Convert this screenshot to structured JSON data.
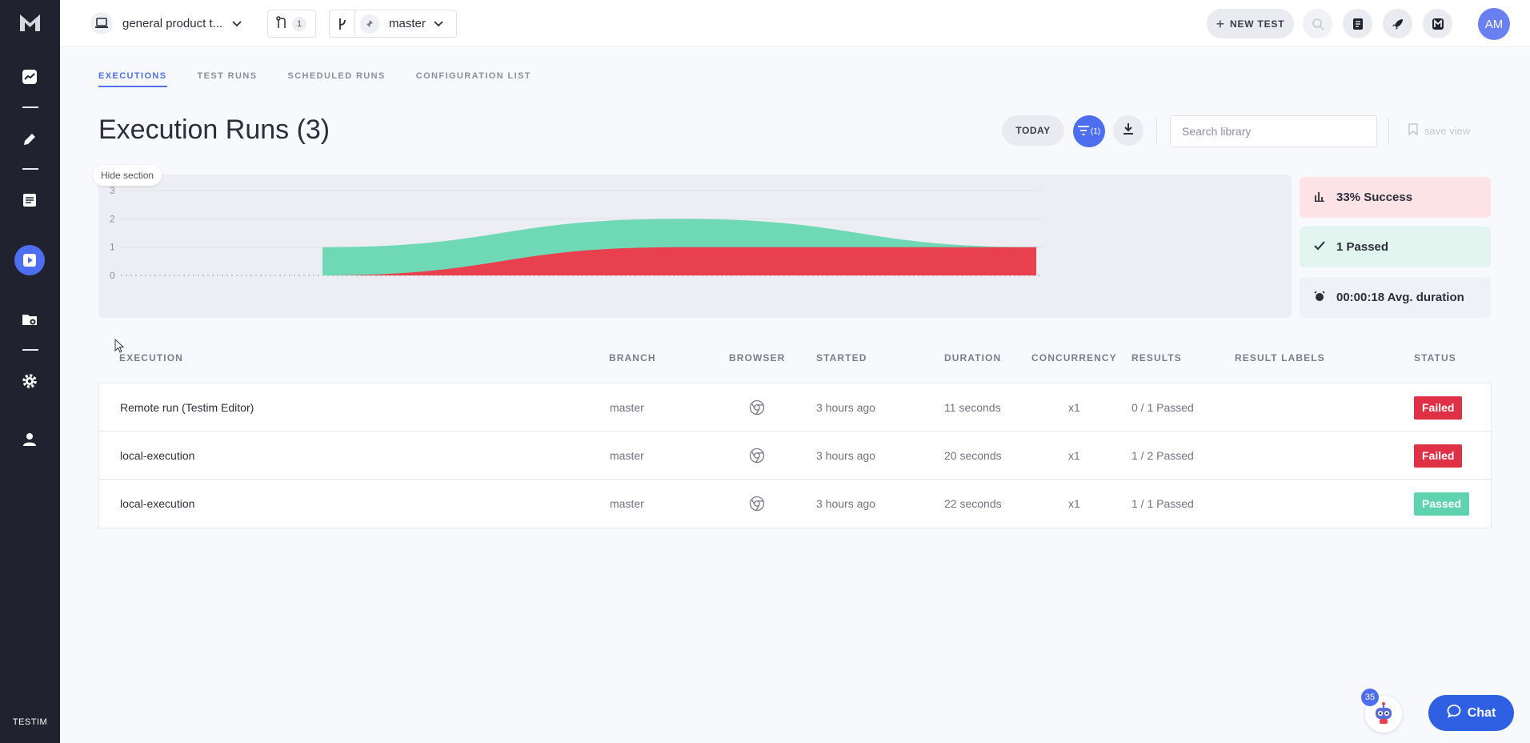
{
  "sidebar": {
    "logo": "M",
    "items": [
      {
        "name": "dashboard",
        "icon": "chart-icon"
      },
      {
        "name": "editor",
        "icon": "pencil-icon"
      },
      {
        "name": "tests",
        "icon": "list-icon"
      },
      {
        "name": "runs",
        "icon": "play-icon",
        "active": true
      },
      {
        "name": "management",
        "icon": "folder-gear-icon"
      },
      {
        "name": "settings",
        "icon": "gear-icon"
      },
      {
        "name": "user",
        "icon": "user-icon"
      }
    ],
    "brand": "TESTIM"
  },
  "header": {
    "project": "general product t...",
    "pr_count": "1",
    "branch": "master",
    "new_test_label": "NEW TEST",
    "avatar_initials": "AM"
  },
  "tabs": [
    "EXECUTIONS",
    "TEST RUNS",
    "SCHEDULED RUNS",
    "CONFIGURATION LIST"
  ],
  "page_title": "Execution Runs (3)",
  "toolbar": {
    "today_label": "TODAY",
    "filter_count": "(1)",
    "search_placeholder": "Search library",
    "save_view_label": "save view"
  },
  "hide_section_label": "Hide section",
  "chart_data": {
    "type": "area",
    "y_ticks": [
      "3",
      "2",
      "1",
      "0"
    ],
    "ylim": [
      0,
      3
    ],
    "series": [
      {
        "values": [
          1,
          2,
          1
        ],
        "color": "#6fd8b4"
      },
      {
        "values": [
          0,
          1,
          1
        ],
        "color": "#e8404f"
      }
    ]
  },
  "stats": {
    "success": "33% Success",
    "passed": "1 Passed",
    "avg_duration": "00:00:18 Avg. duration"
  },
  "table": {
    "headers": [
      "EXECUTION",
      "BRANCH",
      "BROWSER",
      "STARTED",
      "DURATION",
      "CONCURRENCY",
      "RESULTS",
      "RESULT LABELS",
      "STATUS"
    ],
    "rows": [
      {
        "execution": "Remote run (Testim Editor)",
        "branch": "master",
        "browser": "chrome-icon",
        "started": "3 hours ago",
        "duration": "11 seconds",
        "concurrency": "x1",
        "results": "0 / 1 Passed",
        "labels": "",
        "status": "Failed",
        "status_color": "#e03046"
      },
      {
        "execution": "local-execution",
        "branch": "master",
        "browser": "chrome-icon",
        "started": "3 hours ago",
        "duration": "20 seconds",
        "concurrency": "x1",
        "results": "1 / 2 Passed",
        "labels": "",
        "status": "Failed",
        "status_color": "#e03046"
      },
      {
        "execution": "local-execution",
        "branch": "master",
        "browser": "chrome-icon",
        "started": "3 hours ago",
        "duration": "22 seconds",
        "concurrency": "x1",
        "results": "1 / 1 Passed",
        "labels": "",
        "status": "Passed",
        "status_color": "#5fd3ad"
      }
    ]
  },
  "assistant_badge": "35",
  "chat_label": "Chat"
}
